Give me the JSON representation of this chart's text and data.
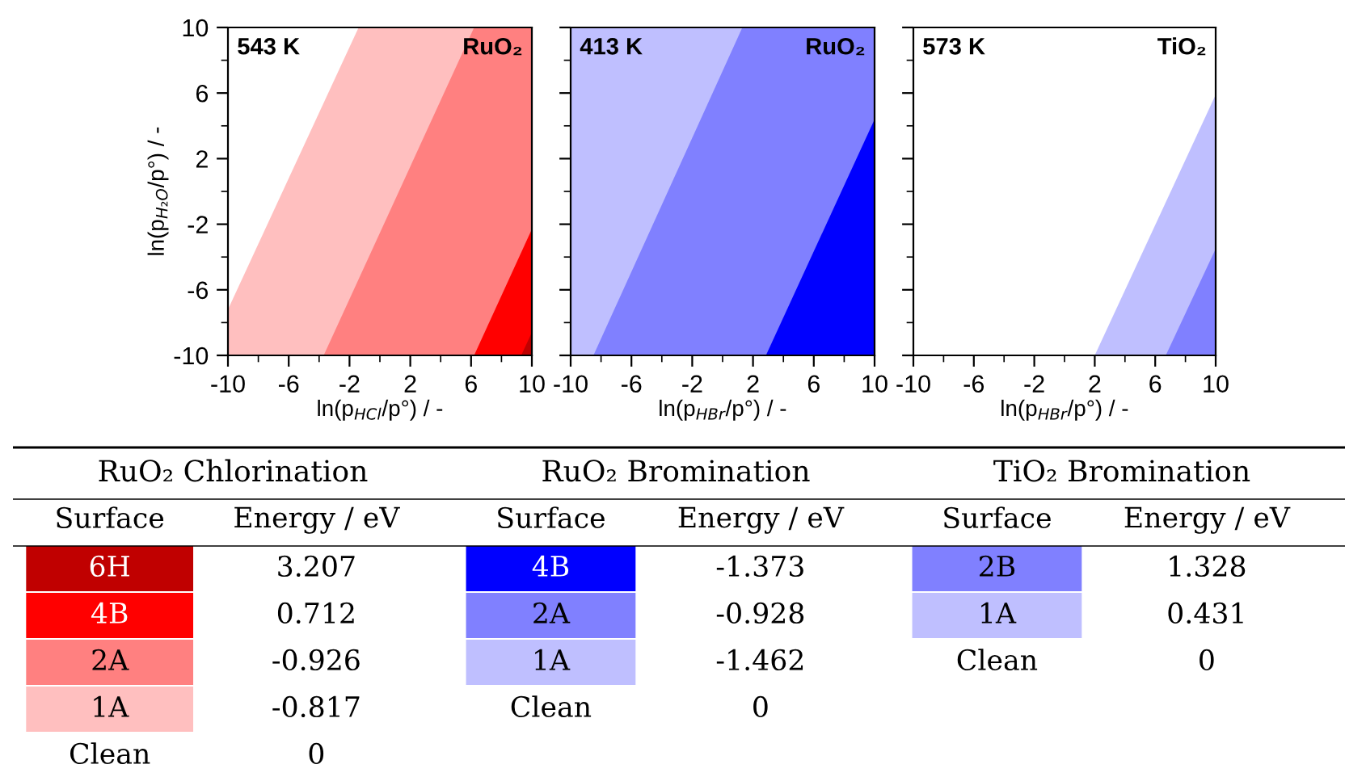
{
  "chart_data": [
    {
      "type": "area",
      "xlabel": "ln(p$_{HCl}$/p°) / -",
      "ylabel": "ln(p$_{H₂O}$/p°) / -",
      "annotations": [
        "543 K",
        "RuO₂"
      ],
      "xlim": [
        -10,
        10
      ],
      "ylim": [
        -10,
        10
      ],
      "xticks": [
        -10,
        -6,
        -2,
        2,
        6,
        10
      ],
      "yticks": [
        -10,
        -6,
        -2,
        2,
        6,
        10
      ],
      "series": [
        {
          "color": "#ffbfbf",
          "x": [
            -10,
            -10,
            -1.4,
            6.2,
            6.2
          ],
          "values": [
            -10,
            -7.2,
            10,
            10,
            -10
          ]
        },
        {
          "color": "#ff8080",
          "x": [
            -3.7,
            6.2,
            10,
            10
          ],
          "values": [
            -10,
            10,
            10,
            -10
          ]
        },
        {
          "color": "#ff0000",
          "x": [
            6.2,
            10,
            10
          ],
          "values": [
            -10,
            -2.3,
            -10
          ]
        },
        {
          "color": "#c00000",
          "x": [
            9.3,
            10,
            10
          ],
          "values": [
            -10,
            -8.6,
            -10
          ]
        }
      ]
    },
    {
      "type": "area",
      "xlabel": "ln(p$_{HBr}$/p°) / -",
      "annotations": [
        "413 K",
        "RuO₂"
      ],
      "xlim": [
        -10,
        10
      ],
      "ylim": [
        -10,
        10
      ],
      "xticks": [
        -10,
        -6,
        -2,
        2,
        6,
        10
      ],
      "yticks": [
        -10,
        -6,
        -2,
        2,
        6,
        10
      ],
      "tick_labels": "x",
      "series": [
        {
          "color": "#bfbfff",
          "x": [
            -10,
            -10,
            1.3,
            1.3
          ],
          "values": [
            -10,
            10,
            10,
            -10
          ]
        },
        {
          "color": "#8080ff",
          "x": [
            -8.5,
            1.3,
            10,
            10
          ],
          "values": [
            -10,
            10,
            10,
            -10
          ]
        },
        {
          "color": "#0000ff",
          "x": [
            2.85,
            10,
            10
          ],
          "values": [
            -10,
            4.4,
            -10
          ]
        }
      ]
    },
    {
      "type": "area",
      "xlabel": "ln(p$_{HBr}$/p°) / -",
      "annotations": [
        "573 K",
        "TiO₂"
      ],
      "xlim": [
        -10,
        10
      ],
      "ylim": [
        -10,
        10
      ],
      "xticks": [
        -10,
        -6,
        -2,
        2,
        6,
        10
      ],
      "yticks": [
        -10,
        -6,
        -2,
        2,
        6,
        10
      ],
      "tick_labels": "x",
      "series": [
        {
          "color": "#bfbfff",
          "x": [
            2.0,
            10,
            10
          ],
          "values": [
            -10,
            5.9,
            -10
          ]
        },
        {
          "color": "#8080ff",
          "x": [
            6.7,
            10,
            10
          ],
          "values": [
            -10,
            -3.5,
            -10
          ]
        }
      ]
    },
    {
      "type": "other",
      "title": "RuO₂ Chlorination",
      "annotations": [
        "Surface",
        "Energy / eV"
      ],
      "categories": [
        "6H",
        "4B",
        "2A",
        "1A",
        "Clean"
      ],
      "values": [
        3.207,
        0.712,
        -0.926,
        -0.817,
        0
      ],
      "colors": [
        "#c00000",
        "#ff0000",
        "#ff8080",
        "#ffbfbf",
        null
      ],
      "data_labels": true
    },
    {
      "type": "other",
      "title": "RuO₂ Bromination",
      "annotations": [
        "Surface",
        "Energy / eV"
      ],
      "categories": [
        "4B",
        "2A",
        "1A",
        "Clean"
      ],
      "values": [
        -1.373,
        -0.928,
        -1.462,
        0
      ],
      "colors": [
        "#0000ff",
        "#8080ff",
        "#bfbfff",
        null
      ],
      "data_labels": true
    },
    {
      "type": "other",
      "title": "TiO₂ Bromination",
      "annotations": [
        "Surface",
        "Energy / eV"
      ],
      "categories": [
        "2B",
        "1A",
        "Clean"
      ],
      "values": [
        1.328,
        0.431,
        0
      ],
      "colors": [
        "#8080ff",
        "#bfbfff",
        null
      ],
      "data_labels": true
    }
  ]
}
